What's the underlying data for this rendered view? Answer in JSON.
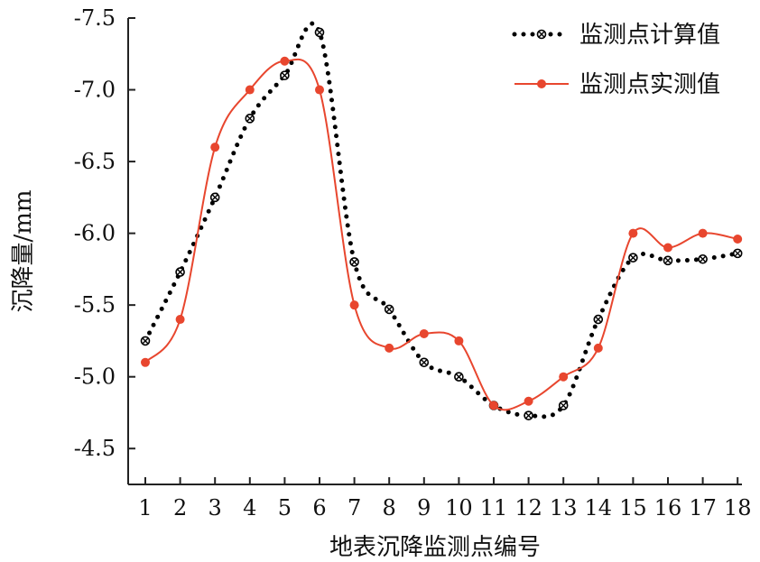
{
  "chart_data": {
    "type": "line",
    "xlabel": "地表沉降监测点编号",
    "ylabel": "沉降量/mm",
    "x": [
      1,
      2,
      3,
      4,
      5,
      6,
      7,
      8,
      9,
      10,
      11,
      12,
      13,
      14,
      15,
      16,
      17,
      18
    ],
    "x_tick_labels": [
      "1",
      "2",
      "3",
      "4",
      "5",
      "6",
      "7",
      "8",
      "9",
      "10",
      "11",
      "12",
      "13",
      "14",
      "15",
      "16",
      "17",
      "18"
    ],
    "ylim": [
      -4.25,
      -7.5
    ],
    "y_axis_reversed": true,
    "y_ticks": [
      -4.5,
      -5.0,
      -5.5,
      -6.0,
      -6.5,
      -7.0,
      -7.5
    ],
    "y_tick_labels": [
      "-4.5",
      "-5.0",
      "-5.5",
      "-6.0",
      "-6.5",
      "-7.0",
      "-7.5"
    ],
    "grid": false,
    "legend_position": "top-right",
    "series": [
      {
        "name": "监测点计算值",
        "style": "dotted",
        "marker": "circle-cross",
        "color": "#000000",
        "values": [
          -5.25,
          -5.73,
          -6.25,
          -6.8,
          -7.1,
          -7.4,
          -5.8,
          -5.47,
          -5.1,
          -5.0,
          -4.8,
          -4.73,
          -4.8,
          -5.4,
          -5.83,
          -5.81,
          -5.82,
          -5.86
        ]
      },
      {
        "name": "监测点实测值",
        "style": "solid",
        "marker": "filled-circle",
        "color": "#e8462e",
        "values": [
          -5.1,
          -5.4,
          -6.6,
          -7.0,
          -7.2,
          -7.0,
          -5.5,
          -5.2,
          -5.3,
          -5.25,
          -4.8,
          -4.83,
          -5.0,
          -5.2,
          -6.0,
          -5.9,
          -6.0,
          -5.96
        ]
      }
    ]
  }
}
